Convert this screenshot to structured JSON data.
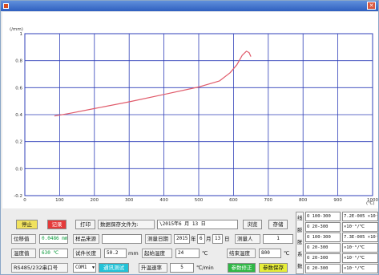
{
  "window": {
    "title": ""
  },
  "chart_data": {
    "type": "line",
    "ylabel": "(/mm)",
    "xlabel": "(℃)",
    "x_ticks": [
      "0",
      "100",
      "200",
      "300",
      "400",
      "500",
      "600",
      "700",
      "800",
      "900",
      "1000"
    ],
    "y_ticks": [
      "1",
      "0.8",
      "0.6",
      "0.4",
      "0.2",
      "0.0",
      "-0.2"
    ],
    "xlim": [
      0,
      1000
    ],
    "ylim": [
      -0.2,
      1.0
    ],
    "grid": true,
    "series": [
      {
        "color": "#e05a6a",
        "points": [
          [
            85,
            0.39
          ],
          [
            130,
            0.41
          ],
          [
            200,
            0.445
          ],
          [
            300,
            0.495
          ],
          [
            400,
            0.55
          ],
          [
            500,
            0.605
          ],
          [
            560,
            0.65
          ],
          [
            590,
            0.71
          ],
          [
            610,
            0.77
          ],
          [
            625,
            0.84
          ],
          [
            637,
            0.87
          ],
          [
            645,
            0.86
          ],
          [
            650,
            0.83
          ]
        ]
      }
    ]
  },
  "controls": {
    "stop_label": "停止",
    "record_label": "记录",
    "print_label": "打印",
    "save_file_label": "数据保存文件为:",
    "save_file_value": "\\2015年6  月 13  日",
    "browse_label": "浏览",
    "store_label": "存储",
    "displacement_label": "位移值",
    "displacement_value": "0.0486 mm",
    "sample_source_label": "样品来源",
    "sample_source_value": "",
    "test_date_label": "测量日期",
    "test_date_year": "2015",
    "test_date_month": "6",
    "test_date_day": "13",
    "year_unit": "年",
    "month_unit": "月",
    "day_unit": "日",
    "operator_label": "测量人",
    "operator_value": "1",
    "temp_label": "温度值",
    "temp_value": "630 ℃",
    "sample_length_label": "试件长度",
    "sample_length_value": "50.2",
    "sample_length_unit": "mm",
    "start_temp_label": "起始温度",
    "start_temp_value": "24",
    "start_temp_unit": "℃",
    "end_temp_label": "结束温度",
    "end_temp_value": "800",
    "end_temp_unit": "℃",
    "serial_port_label": "RS485/232串口号",
    "port_select_value": "COM1",
    "comm_test_label": "通讯测试",
    "heating_rate_label": "升温速率",
    "heating_rate_value": "5",
    "heating_rate_unit": "℃/min",
    "param_set_label": "参数修正",
    "param_save_label": "参数保存",
    "side_labels": [
      "线",
      "膨",
      "胀",
      "系",
      "数"
    ],
    "coefficients": [
      {
        "value": "Ο 100-300",
        "unit": "7.2E-005 ×10⁻⁶/℃"
      },
      {
        "value": "Ο 20-300",
        "unit": "×10⁻⁶/℃"
      },
      {
        "value": "Ο 100-300",
        "unit": "7.3E-005 ×10⁻⁶/℃"
      },
      {
        "value": "Ο 20-300",
        "unit": "×10⁻⁶/℃"
      },
      {
        "value": "Ο 20-300",
        "unit": "×10⁻⁶/℃"
      },
      {
        "value": "Ο 20-300",
        "unit": "×10⁻⁶/℃"
      }
    ]
  }
}
